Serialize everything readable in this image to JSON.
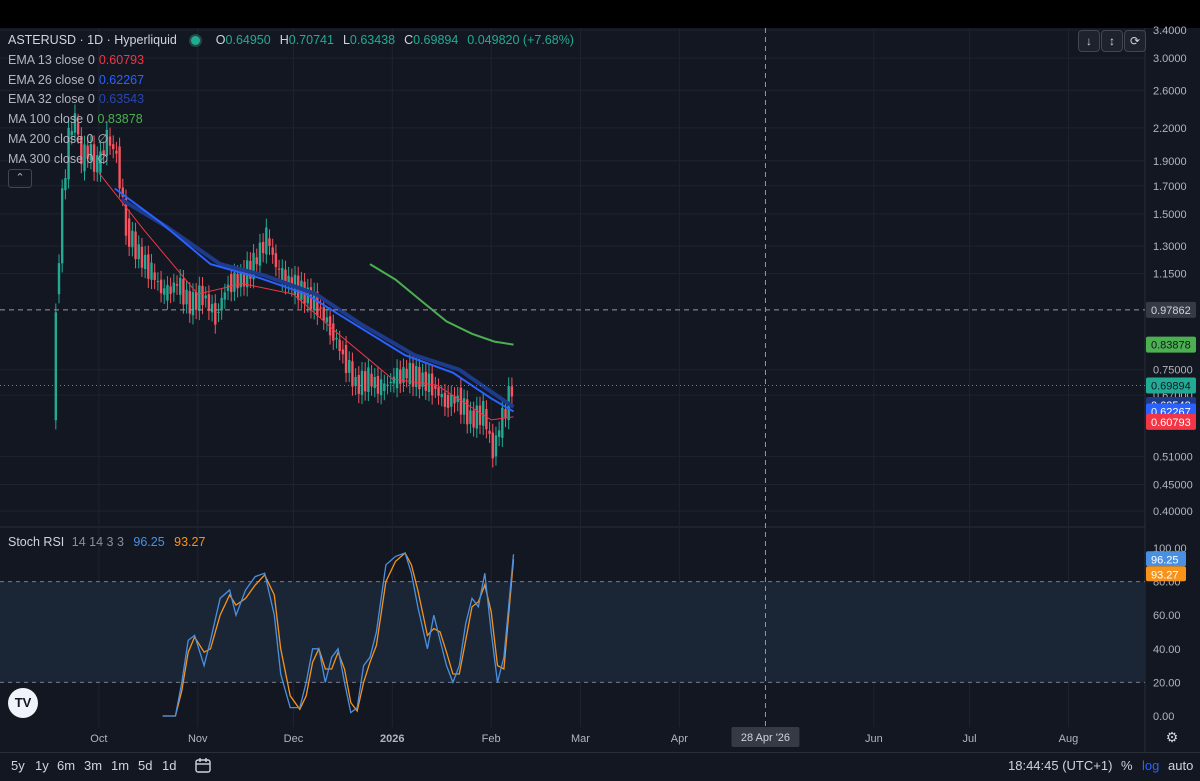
{
  "header": {
    "symbol": "ASTERUSD · 1D · Hyperliquid",
    "open_label": "O",
    "open": "0.64950",
    "high_label": "H",
    "high": "0.70741",
    "low_label": "L",
    "low": "0.63438",
    "close_label": "C",
    "close": "0.69894",
    "change": "0.049820 (+7.68%)"
  },
  "indicators": [
    {
      "name": "EMA 13 close 0",
      "value": "0.60793",
      "color": "#f23645"
    },
    {
      "name": "EMA 26 close 0",
      "value": "0.62267",
      "color": "#2962ff"
    },
    {
      "name": "EMA 32 close 0",
      "value": "0.63543",
      "color": "#1e3a8a"
    },
    {
      "name": "MA 100 close 0",
      "value": "0.83878",
      "color": "#4caf50"
    },
    {
      "name": "MA 200 close 0",
      "value": "∅",
      "color": "#b2b5be"
    },
    {
      "name": "MA 300 close 0",
      "value": "∅",
      "color": "#b2b5be"
    }
  ],
  "collapse_icon": "chevron-up-icon",
  "header_buttons": [
    "arrow-down-icon",
    "expand-icon",
    "refresh-icon"
  ],
  "stoch": {
    "label": "Stoch RSI",
    "params": "14 14 3 3",
    "k": "96.25",
    "d": "93.27",
    "k_color": "#4a90e2",
    "d_color": "#f7931a"
  },
  "price_labels": {
    "crosshair": "0.97862",
    "ma100": "0.83878",
    "last": "0.69894",
    "ema32": "0.63543",
    "ema26": "0.62267",
    "ema13": "0.60793"
  },
  "xaxis_crosshair_label": "28 Apr '26",
  "timeframes": [
    "5y",
    "1y",
    "6m",
    "3m",
    "1m",
    "5d",
    "1d"
  ],
  "status": {
    "clock": "18:44:45 (UTC+1)",
    "percent": "%",
    "log": "log",
    "auto": "auto"
  },
  "chart_data": [
    {
      "type": "candlestick",
      "title": "ASTERUSD · 1D · Hyperliquid",
      "scale": "log",
      "ylim": [
        0.38,
        3.4
      ],
      "y_ticks": [
        "3.4000",
        "3.0000",
        "2.6000",
        "2.2000",
        "1.9000",
        "1.7000",
        "1.5000",
        "1.3000",
        "1.1500",
        "0.75000",
        "0.67000",
        "0.51000",
        "0.45000",
        "0.40000"
      ],
      "x_ticks": [
        "Oct",
        "Nov",
        "Dec",
        "2026",
        "Feb",
        "Mar",
        "Apr",
        "Jun",
        "Jul",
        "Aug"
      ],
      "series": [
        {
          "name": "EMA 13",
          "color": "#f23645"
        },
        {
          "name": "EMA 26",
          "color": "#2962ff"
        },
        {
          "name": "EMA 32",
          "color": "#1e3a8a"
        },
        {
          "name": "MA 100",
          "color": "#4caf50"
        }
      ],
      "close_path": [
        {
          "x": "2025-09-17",
          "y": 0.58
        },
        {
          "x": "2025-09-18",
          "y": 1.0
        },
        {
          "x": "2025-09-20",
          "y": 1.6
        },
        {
          "x": "2025-09-22",
          "y": 2.1
        },
        {
          "x": "2025-09-24",
          "y": 2.3
        },
        {
          "x": "2025-09-26",
          "y": 1.9
        },
        {
          "x": "2025-09-28",
          "y": 2.0
        },
        {
          "x": "2025-10-01",
          "y": 1.85
        },
        {
          "x": "2025-10-04",
          "y": 2.1
        },
        {
          "x": "2025-10-07",
          "y": 1.95
        },
        {
          "x": "2025-10-10",
          "y": 1.4
        },
        {
          "x": "2025-10-14",
          "y": 1.25
        },
        {
          "x": "2025-10-18",
          "y": 1.15
        },
        {
          "x": "2025-10-22",
          "y": 1.05
        },
        {
          "x": "2025-10-26",
          "y": 1.1
        },
        {
          "x": "2025-10-30",
          "y": 1.0
        },
        {
          "x": "2025-11-03",
          "y": 1.05
        },
        {
          "x": "2025-11-07",
          "y": 0.95
        },
        {
          "x": "2025-11-11",
          "y": 1.1
        },
        {
          "x": "2025-11-15",
          "y": 1.12
        },
        {
          "x": "2025-11-19",
          "y": 1.2
        },
        {
          "x": "2025-11-23",
          "y": 1.35
        },
        {
          "x": "2025-11-27",
          "y": 1.15
        },
        {
          "x": "2025-12-01",
          "y": 1.1
        },
        {
          "x": "2025-12-05",
          "y": 1.05
        },
        {
          "x": "2025-12-09",
          "y": 1.0
        },
        {
          "x": "2025-12-13",
          "y": 0.9
        },
        {
          "x": "2025-12-17",
          "y": 0.8
        },
        {
          "x": "2025-12-21",
          "y": 0.7
        },
        {
          "x": "2025-12-25",
          "y": 0.72
        },
        {
          "x": "2025-12-29",
          "y": 0.69
        },
        {
          "x": "2026-01-02",
          "y": 0.72
        },
        {
          "x": "2026-01-06",
          "y": 0.74
        },
        {
          "x": "2026-01-10",
          "y": 0.72
        },
        {
          "x": "2026-01-14",
          "y": 0.7
        },
        {
          "x": "2026-01-18",
          "y": 0.65
        },
        {
          "x": "2026-01-22",
          "y": 0.66
        },
        {
          "x": "2026-01-26",
          "y": 0.6
        },
        {
          "x": "2026-01-30",
          "y": 0.62
        },
        {
          "x": "2026-02-02",
          "y": 0.52
        },
        {
          "x": "2026-02-04",
          "y": 0.58
        },
        {
          "x": "2026-02-06",
          "y": 0.63
        },
        {
          "x": "2026-02-08",
          "y": 0.69894
        }
      ],
      "ema13_path": [
        {
          "x": "2025-10-01",
          "y": 1.8
        },
        {
          "x": "2025-10-15",
          "y": 1.4
        },
        {
          "x": "2025-11-01",
          "y": 1.05
        },
        {
          "x": "2025-11-15",
          "y": 1.1
        },
        {
          "x": "2025-12-01",
          "y": 1.05
        },
        {
          "x": "2025-12-15",
          "y": 0.88
        },
        {
          "x": "2026-01-01",
          "y": 0.72
        },
        {
          "x": "2026-01-15",
          "y": 0.7
        },
        {
          "x": "2026-02-01",
          "y": 0.6
        },
        {
          "x": "2026-02-08",
          "y": 0.60793
        }
      ],
      "ema26_path": [
        {
          "x": "2025-10-06",
          "y": 1.68
        },
        {
          "x": "2025-10-20",
          "y": 1.45
        },
        {
          "x": "2025-11-05",
          "y": 1.2
        },
        {
          "x": "2025-11-20",
          "y": 1.13
        },
        {
          "x": "2025-12-05",
          "y": 1.05
        },
        {
          "x": "2025-12-20",
          "y": 0.92
        },
        {
          "x": "2026-01-05",
          "y": 0.8
        },
        {
          "x": "2026-01-20",
          "y": 0.74
        },
        {
          "x": "2026-02-01",
          "y": 0.66
        },
        {
          "x": "2026-02-08",
          "y": 0.62267
        }
      ],
      "ema32_path": [
        {
          "x": "2025-10-08",
          "y": 1.6
        },
        {
          "x": "2025-10-22",
          "y": 1.42
        },
        {
          "x": "2025-11-08",
          "y": 1.2
        },
        {
          "x": "2025-11-22",
          "y": 1.14
        },
        {
          "x": "2025-12-08",
          "y": 1.05
        },
        {
          "x": "2025-12-22",
          "y": 0.92
        },
        {
          "x": "2026-01-08",
          "y": 0.8
        },
        {
          "x": "2026-01-22",
          "y": 0.75
        },
        {
          "x": "2026-02-01",
          "y": 0.68
        },
        {
          "x": "2026-02-08",
          "y": 0.63543
        }
      ],
      "ma100_path": [
        {
          "x": "2025-12-25",
          "y": 1.2
        },
        {
          "x": "2026-01-02",
          "y": 1.12
        },
        {
          "x": "2026-01-10",
          "y": 1.02
        },
        {
          "x": "2026-01-18",
          "y": 0.93
        },
        {
          "x": "2026-01-26",
          "y": 0.88
        },
        {
          "x": "2026-02-02",
          "y": 0.85
        },
        {
          "x": "2026-02-08",
          "y": 0.83878
        }
      ]
    },
    {
      "type": "line",
      "title": "Stoch RSI",
      "ylim": [
        0,
        100
      ],
      "y_ticks": [
        "0.00",
        "20.00",
        "40.00",
        "60.00",
        "80.00",
        "100.00"
      ],
      "bands": [
        20,
        80
      ],
      "series": [
        {
          "name": "K",
          "color": "#4a90e2",
          "points": [
            {
              "x": "2025-10-21",
              "y": 0
            },
            {
              "x": "2025-10-25",
              "y": 0
            },
            {
              "x": "2025-10-27",
              "y": 20
            },
            {
              "x": "2025-10-29",
              "y": 45
            },
            {
              "x": "2025-10-31",
              "y": 48
            },
            {
              "x": "2025-11-03",
              "y": 30
            },
            {
              "x": "2025-11-05",
              "y": 45
            },
            {
              "x": "2025-11-08",
              "y": 70
            },
            {
              "x": "2025-11-11",
              "y": 75
            },
            {
              "x": "2025-11-13",
              "y": 60
            },
            {
              "x": "2025-11-16",
              "y": 75
            },
            {
              "x": "2025-11-19",
              "y": 83
            },
            {
              "x": "2025-11-22",
              "y": 85
            },
            {
              "x": "2025-11-25",
              "y": 60
            },
            {
              "x": "2025-11-27",
              "y": 25
            },
            {
              "x": "2025-11-30",
              "y": 5
            },
            {
              "x": "2025-12-03",
              "y": 5
            },
            {
              "x": "2025-12-05",
              "y": 20
            },
            {
              "x": "2025-12-07",
              "y": 40
            },
            {
              "x": "2025-12-09",
              "y": 40
            },
            {
              "x": "2025-12-11",
              "y": 20
            },
            {
              "x": "2025-12-13",
              "y": 35
            },
            {
              "x": "2025-12-15",
              "y": 40
            },
            {
              "x": "2025-12-17",
              "y": 20
            },
            {
              "x": "2025-12-19",
              "y": 2
            },
            {
              "x": "2025-12-21",
              "y": 5
            },
            {
              "x": "2025-12-23",
              "y": 30
            },
            {
              "x": "2025-12-25",
              "y": 35
            },
            {
              "x": "2025-12-27",
              "y": 50
            },
            {
              "x": "2025-12-30",
              "y": 90
            },
            {
              "x": "2026-01-02",
              "y": 95
            },
            {
              "x": "2026-01-05",
              "y": 97
            },
            {
              "x": "2026-01-07",
              "y": 85
            },
            {
              "x": "2026-01-09",
              "y": 65
            },
            {
              "x": "2026-01-12",
              "y": 40
            },
            {
              "x": "2026-01-14",
              "y": 60
            },
            {
              "x": "2026-01-16",
              "y": 45
            },
            {
              "x": "2026-01-18",
              "y": 30
            },
            {
              "x": "2026-01-20",
              "y": 20
            },
            {
              "x": "2026-01-22",
              "y": 30
            },
            {
              "x": "2026-01-24",
              "y": 55
            },
            {
              "x": "2026-01-26",
              "y": 70
            },
            {
              "x": "2026-01-28",
              "y": 65
            },
            {
              "x": "2026-01-30",
              "y": 85
            },
            {
              "x": "2026-02-01",
              "y": 50
            },
            {
              "x": "2026-02-03",
              "y": 20
            },
            {
              "x": "2026-02-05",
              "y": 35
            },
            {
              "x": "2026-02-08",
              "y": 96.25
            }
          ]
        },
        {
          "name": "D",
          "color": "#f7931a",
          "points": [
            {
              "x": "2025-10-21",
              "y": 0
            },
            {
              "x": "2025-10-25",
              "y": 0
            },
            {
              "x": "2025-10-27",
              "y": 15
            },
            {
              "x": "2025-10-29",
              "y": 38
            },
            {
              "x": "2025-10-31",
              "y": 47
            },
            {
              "x": "2025-11-03",
              "y": 38
            },
            {
              "x": "2025-11-05",
              "y": 40
            },
            {
              "x": "2025-11-08",
              "y": 60
            },
            {
              "x": "2025-11-11",
              "y": 72
            },
            {
              "x": "2025-11-13",
              "y": 66
            },
            {
              "x": "2025-11-16",
              "y": 70
            },
            {
              "x": "2025-11-19",
              "y": 78
            },
            {
              "x": "2025-11-22",
              "y": 84
            },
            {
              "x": "2025-11-25",
              "y": 72
            },
            {
              "x": "2025-11-27",
              "y": 40
            },
            {
              "x": "2025-11-30",
              "y": 12
            },
            {
              "x": "2025-12-03",
              "y": 4
            },
            {
              "x": "2025-12-05",
              "y": 12
            },
            {
              "x": "2025-12-07",
              "y": 32
            },
            {
              "x": "2025-12-09",
              "y": 40
            },
            {
              "x": "2025-12-11",
              "y": 28
            },
            {
              "x": "2025-12-13",
              "y": 28
            },
            {
              "x": "2025-12-15",
              "y": 38
            },
            {
              "x": "2025-12-17",
              "y": 28
            },
            {
              "x": "2025-12-19",
              "y": 8
            },
            {
              "x": "2025-12-21",
              "y": 3
            },
            {
              "x": "2025-12-23",
              "y": 20
            },
            {
              "x": "2025-12-25",
              "y": 32
            },
            {
              "x": "2025-12-27",
              "y": 42
            },
            {
              "x": "2025-12-30",
              "y": 80
            },
            {
              "x": "2026-01-02",
              "y": 92
            },
            {
              "x": "2026-01-05",
              "y": 97
            },
            {
              "x": "2026-01-07",
              "y": 90
            },
            {
              "x": "2026-01-09",
              "y": 75
            },
            {
              "x": "2026-01-12",
              "y": 48
            },
            {
              "x": "2026-01-14",
              "y": 52
            },
            {
              "x": "2026-01-16",
              "y": 50
            },
            {
              "x": "2026-01-18",
              "y": 38
            },
            {
              "x": "2026-01-20",
              "y": 25
            },
            {
              "x": "2026-01-22",
              "y": 25
            },
            {
              "x": "2026-01-24",
              "y": 45
            },
            {
              "x": "2026-01-26",
              "y": 65
            },
            {
              "x": "2026-01-28",
              "y": 68
            },
            {
              "x": "2026-01-30",
              "y": 78
            },
            {
              "x": "2026-02-01",
              "y": 62
            },
            {
              "x": "2026-02-03",
              "y": 30
            },
            {
              "x": "2026-02-05",
              "y": 28
            },
            {
              "x": "2026-02-08",
              "y": 93.27
            }
          ]
        }
      ]
    }
  ]
}
